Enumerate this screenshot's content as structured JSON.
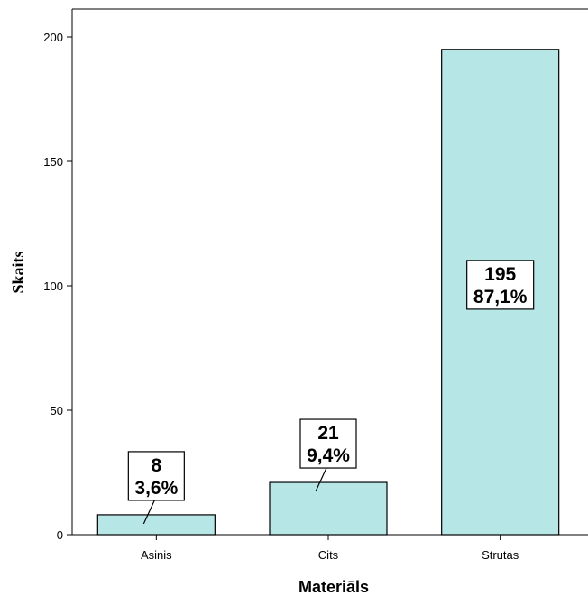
{
  "chart_data": {
    "type": "bar",
    "title": "",
    "xlabel": "Materiāls",
    "ylabel": "Skaits",
    "categories": [
      "Asinis",
      "Cits",
      "Strutas"
    ],
    "values": [
      8,
      21,
      195
    ],
    "labels": [
      {
        "count": "8",
        "percent": "3,6%"
      },
      {
        "count": "21",
        "percent": "9,4%"
      },
      {
        "count": "195",
        "percent": "87,1%"
      }
    ],
    "yticks": [
      "0",
      "50",
      "100",
      "150",
      "200"
    ],
    "ylim": [
      0,
      210
    ],
    "grid": false,
    "legend": "none",
    "colors": {
      "bar_fill": "#b7e6e6",
      "bar_stroke": "#000000",
      "label_box": "#ffffff"
    }
  }
}
